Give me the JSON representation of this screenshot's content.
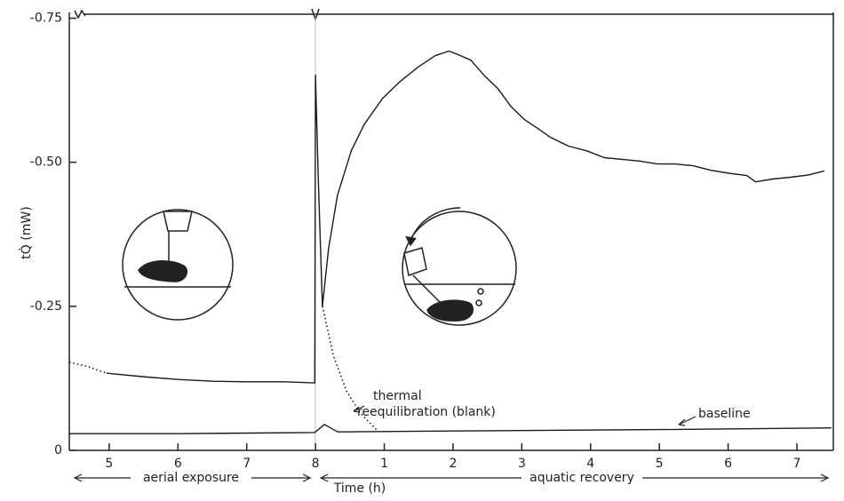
{
  "chart_data": {
    "type": "line",
    "y_label": "tQ̇ (mW)",
    "x_label": "Time (h)",
    "xlim": [
      4.42,
      15.53
    ],
    "ylim": [
      0,
      -0.76
    ],
    "xticks": [
      5,
      6,
      7,
      8,
      {
        "value": 9,
        "label": "1"
      },
      {
        "value": 10,
        "label": "2"
      },
      {
        "value": 11,
        "label": "3"
      },
      {
        "value": 12,
        "label": "4"
      },
      {
        "value": 13,
        "label": "5"
      },
      {
        "value": 14,
        "label": "6"
      },
      {
        "value": 15,
        "label": "7"
      }
    ],
    "yticks": [
      0,
      -0.25,
      {
        "value": -0.5,
        "label": "-0.50"
      },
      -0.75
    ],
    "phases": [
      {
        "label": "aerial exposure",
        "from": 4.42,
        "to": 8
      },
      {
        "label": "aquatic recovery",
        "from": 8,
        "to": 15.53
      }
    ],
    "annotations": [
      "thermal",
      "reequilibration (blank)",
      "baseline"
    ],
    "series": [
      {
        "color": "#1a1a1a",
        "dash": "dotted",
        "x": [
          4.42,
          4.7,
          4.96
        ],
        "values": [
          -0.153,
          -0.145,
          -0.134
        ]
      },
      {
        "color": "#1a1a1a",
        "dash": "solid",
        "x": [
          4.96,
          5.48,
          6.0,
          6.51,
          7.03,
          7.55,
          7.99,
          8.0,
          8.04,
          8.1,
          8.19,
          8.32,
          8.52,
          8.71,
          8.97,
          9.23,
          9.49,
          9.74,
          9.94,
          10.07,
          10.26,
          10.45,
          10.65,
          10.84,
          11.04,
          11.23,
          11.42,
          11.68,
          11.94,
          12.2,
          12.46,
          12.72,
          12.97,
          13.23,
          13.49,
          13.75,
          14.01,
          14.27,
          14.4,
          14.65,
          14.91,
          15.17,
          15.4
        ],
        "values": [
          -0.134,
          -0.128,
          -0.123,
          -0.12,
          -0.119,
          -0.119,
          -0.117,
          -0.651,
          -0.474,
          -0.25,
          -0.35,
          -0.443,
          -0.52,
          -0.566,
          -0.61,
          -0.64,
          -0.665,
          -0.685,
          -0.693,
          -0.687,
          -0.677,
          -0.651,
          -0.628,
          -0.597,
          -0.574,
          -0.559,
          -0.543,
          -0.528,
          -0.52,
          -0.508,
          -0.505,
          -0.502,
          -0.497,
          -0.497,
          -0.494,
          -0.486,
          -0.481,
          -0.477,
          -0.466,
          -0.471,
          -0.474,
          -0.478,
          -0.485
        ]
      },
      {
        "color": "#1a1a1a",
        "dash": "dotted",
        "x": [
          8.1,
          8.26,
          8.45,
          8.65,
          8.9
        ],
        "values": [
          -0.25,
          -0.165,
          -0.103,
          -0.065,
          -0.034
        ]
      },
      {
        "color": "#1a1a1a",
        "dash": "solid",
        "x": [
          4.42,
          6.0,
          7.99,
          8.13,
          8.32,
          10.5,
          13.0,
          15.5
        ],
        "values": [
          -0.029,
          -0.029,
          -0.031,
          -0.045,
          -0.032,
          -0.034,
          -0.036,
          -0.039
        ]
      }
    ]
  }
}
